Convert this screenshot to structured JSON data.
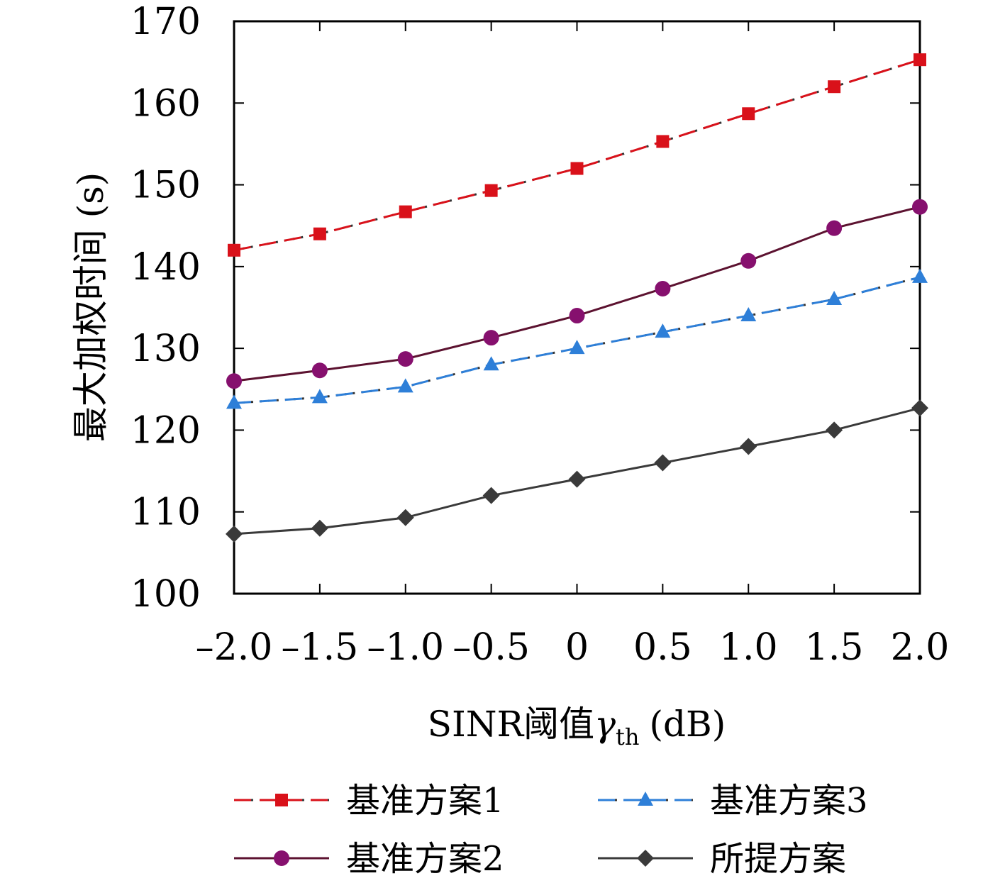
{
  "chart_data": {
    "type": "line",
    "title": "",
    "xlabel": "SINR阈值",
    "xlabel_symbol": "γ",
    "xlabel_subscript": "th",
    "xlabel_unit": "(dB)",
    "ylabel": "最大加权时间 (s)",
    "x": [
      -2.0,
      -1.5,
      -1.0,
      -0.5,
      0,
      0.5,
      1.0,
      1.5,
      2.0
    ],
    "x_tick_labels": [
      "–2.0",
      "–1.5",
      "–1.0",
      "–0.5",
      "0",
      "0.5",
      "1.0",
      "1.5",
      "2.0"
    ],
    "xlim": [
      -2.0,
      2.0
    ],
    "ylim": [
      100,
      170
    ],
    "y_ticks": [
      100,
      110,
      120,
      130,
      140,
      150,
      160,
      170
    ],
    "grid": false,
    "legend_position": "bottom",
    "series": [
      {
        "name": "基准方案1",
        "color": "#d9111a",
        "line_color": "#d9111a",
        "dash_color": "#333333",
        "line_style": "dash-dot",
        "marker": "square",
        "values": [
          142.0,
          144.0,
          146.7,
          149.3,
          152.0,
          155.3,
          158.7,
          162.0,
          165.3
        ]
      },
      {
        "name": "基准方案2",
        "color": "#86106e",
        "line_color": "#5c1230",
        "line_style": "solid",
        "marker": "circle",
        "values": [
          126.0,
          127.3,
          128.7,
          131.3,
          134.0,
          137.3,
          140.7,
          144.7,
          147.3
        ]
      },
      {
        "name": "基准方案3",
        "color": "#2e7fd8",
        "line_color": "#2e7fd8",
        "dash_color": "#333333",
        "line_style": "dash-dot",
        "marker": "triangle",
        "values": [
          123.3,
          124.0,
          125.3,
          128.0,
          130.0,
          132.0,
          134.0,
          136.0,
          138.7
        ]
      },
      {
        "name": "所提方案",
        "color": "#3a3a3a",
        "line_color": "#3a3a3a",
        "line_style": "solid",
        "marker": "diamond",
        "values": [
          107.3,
          108.0,
          109.3,
          112.0,
          114.0,
          116.0,
          118.0,
          120.0,
          122.7
        ]
      }
    ]
  }
}
